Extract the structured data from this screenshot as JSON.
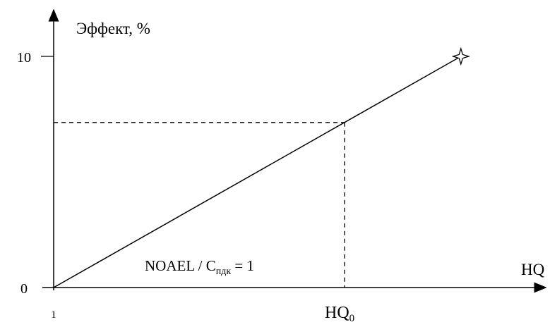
{
  "chart_data": {
    "type": "line",
    "ylabel": "Эффект, %",
    "xlabel": "HQ",
    "y_ticks": [
      {
        "value": 0,
        "label": "0"
      },
      {
        "value": 10,
        "label": "10"
      }
    ],
    "x_ticks": [
      {
        "value": 1,
        "label": "1"
      }
    ],
    "x_marker": {
      "label_main": "HQ",
      "label_sub": "0",
      "x": 2.25,
      "y": 7.14
    },
    "annotation": {
      "text_main": "NOAEL / C",
      "text_sub": "пдк",
      "text_tail": " = 1"
    },
    "series": [
      {
        "points": [
          {
            "x": 1,
            "y": 0
          },
          {
            "x": 2.75,
            "y": 10
          }
        ],
        "end_marker": "four-point-star"
      }
    ],
    "grid": false
  }
}
